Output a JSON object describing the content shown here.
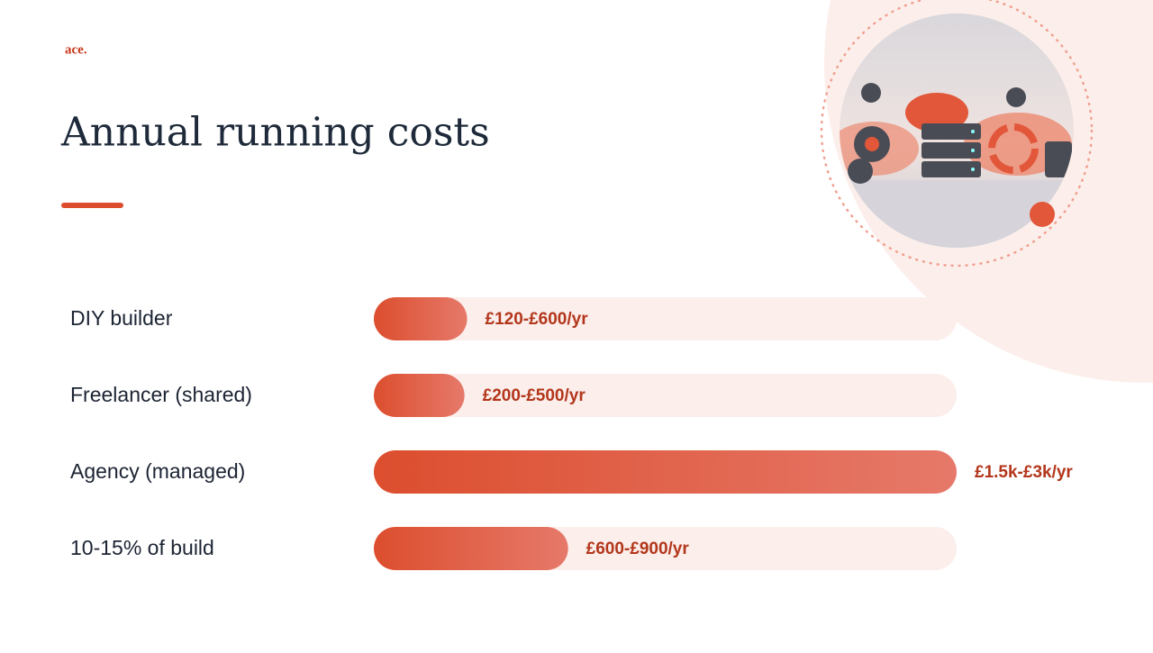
{
  "logo": "ace.",
  "chart_data": {
    "type": "bar",
    "orientation": "horizontal",
    "title": "Annual running costs",
    "categories": [
      "DIY builder",
      "Freelancer (shared)",
      "Agency (managed)",
      "10-15% of build"
    ],
    "values": [
      360,
      350,
      2250,
      750
    ],
    "value_labels": [
      "£120-£600/yr",
      "£200-£500/yr",
      "£1.5k-£3k/yr",
      "£600-£900/yr"
    ],
    "xlim": [
      0,
      2250
    ],
    "color": "#dc4e2e"
  }
}
